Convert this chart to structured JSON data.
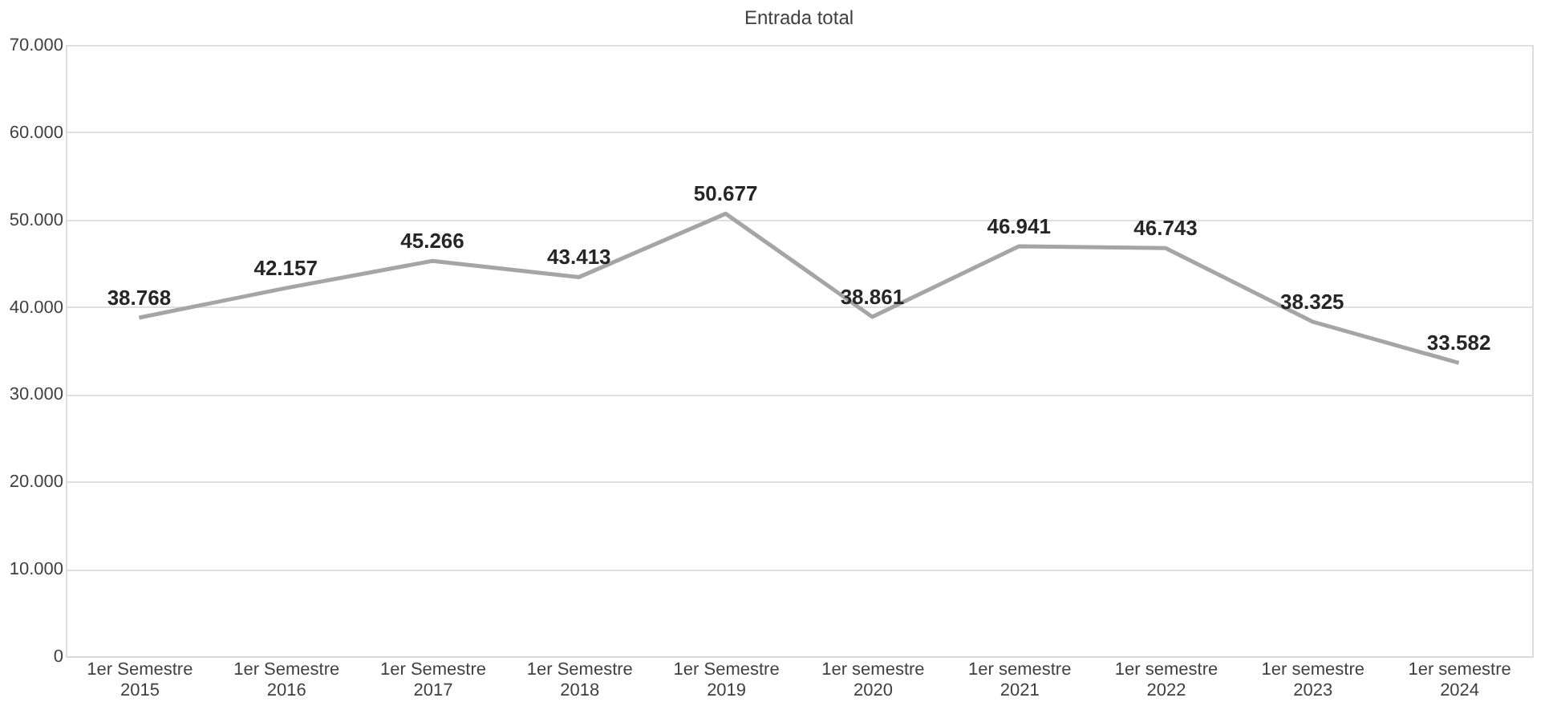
{
  "chart_data": {
    "type": "line",
    "title": "Entrada total",
    "categories": [
      "1er Semestre 2015",
      "1er Semestre 2016",
      "1er Semestre 2017",
      "1er Semestre 2018",
      "1er Semestre 2019",
      "1er semestre 2020",
      "1er semestre 2021",
      "1er semestre 2022",
      "1er semestre 2023",
      "1er semestre 2024"
    ],
    "series": [
      {
        "color": "#a5a5a5",
        "values": [
          38768,
          42157,
          45266,
          43413,
          50677,
          38861,
          46941,
          46743,
          38325,
          33582
        ],
        "value_labels": [
          "38.768",
          "42.157",
          "45.266",
          "43.413",
          "50.677",
          "38.861",
          "46.941",
          "46.743",
          "38.325",
          "33.582"
        ]
      }
    ],
    "ylim": [
      0,
      70000
    ],
    "yticks": [
      0,
      {
        "value": 10000,
        "label": "10.000"
      },
      {
        "value": 20000,
        "label": "20.000"
      },
      {
        "value": 30000,
        "label": "30.000"
      },
      {
        "value": 40000,
        "label": "40.000"
      },
      {
        "value": 50000,
        "label": "50.000"
      },
      {
        "value": 60000,
        "label": "60.000"
      },
      {
        "value": 70000,
        "label": "70.000"
      }
    ],
    "grid": "y",
    "marker": "none",
    "line_style": "solid"
  }
}
